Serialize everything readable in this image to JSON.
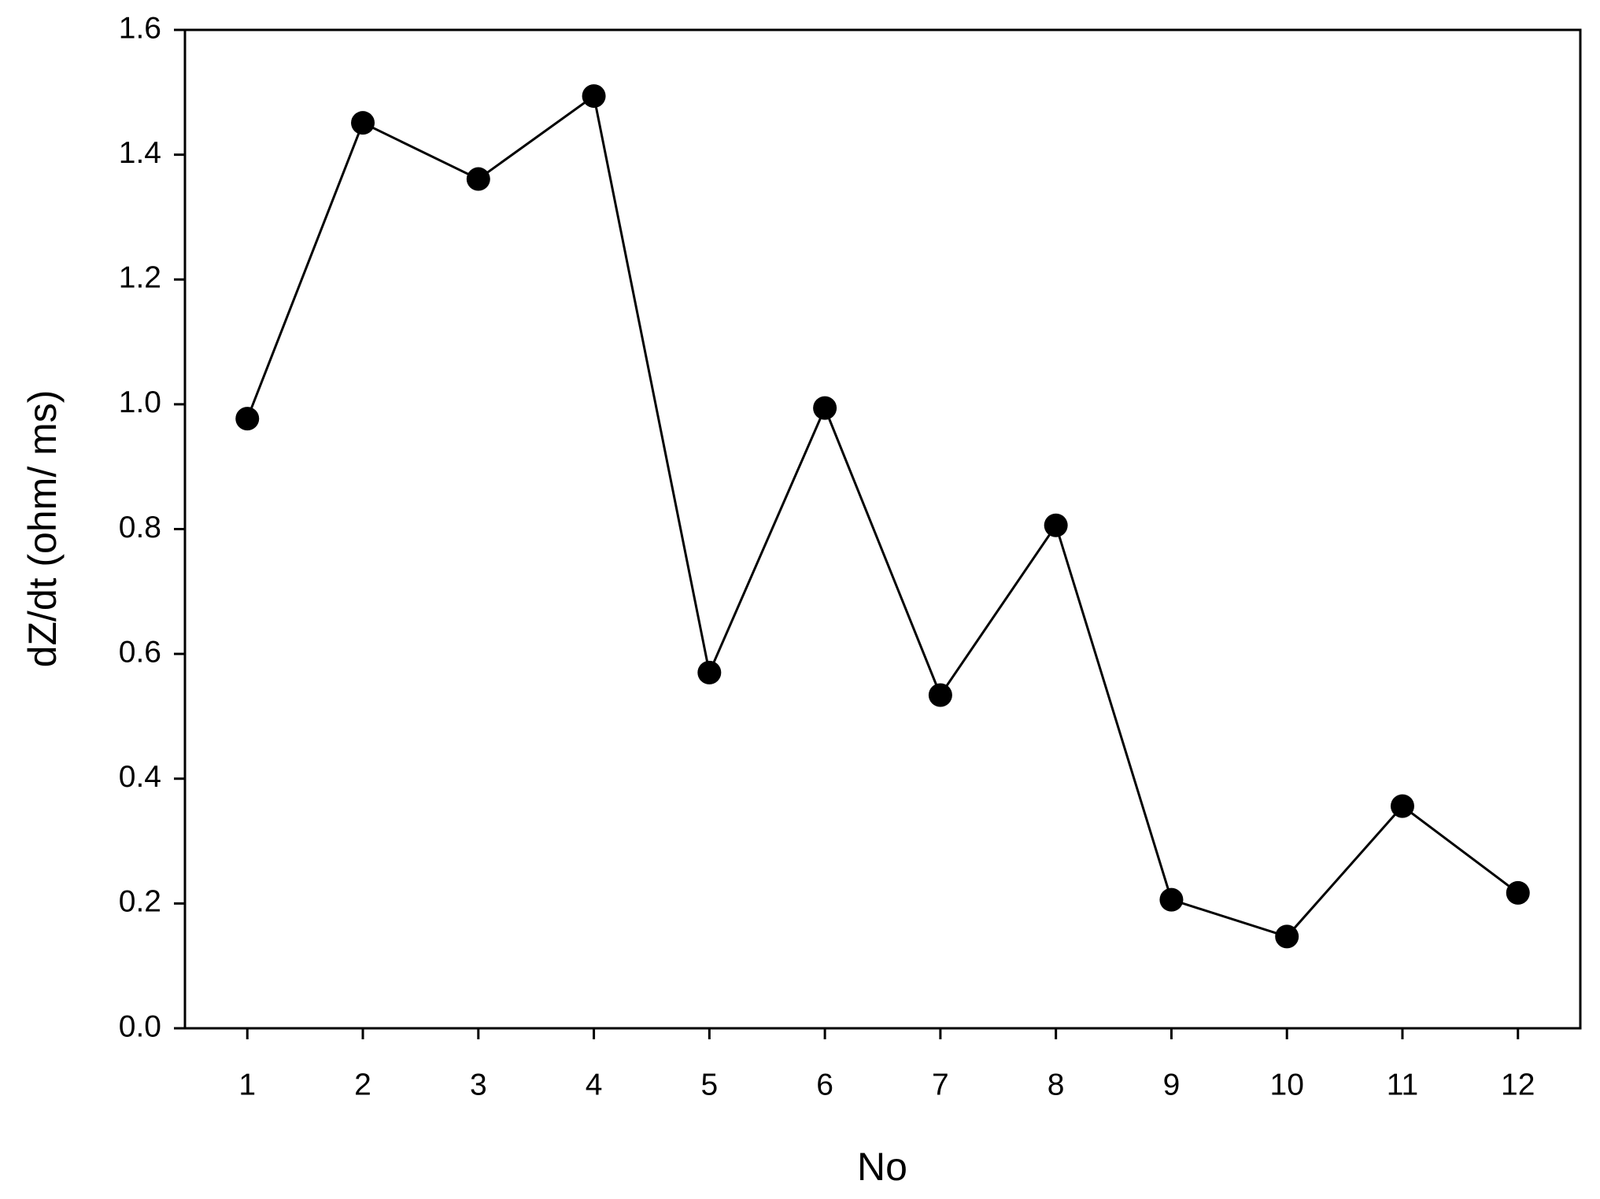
{
  "chart_data": {
    "type": "line",
    "x": [
      1,
      2,
      3,
      4,
      5,
      6,
      7,
      8,
      9,
      10,
      11,
      12
    ],
    "series": [
      {
        "color": "#000000",
        "values": [
          0.977,
          1.451,
          1.361,
          1.494,
          0.57,
          0.994,
          0.534,
          0.806,
          0.206,
          0.147,
          0.356,
          0.217
        ]
      }
    ],
    "xlabel": "No",
    "ylabel": "dZ/dt (ohm/ ms)",
    "xlim": [
      0.46,
      12.54
    ],
    "xticks": [
      1,
      2,
      3,
      4,
      5,
      6,
      7,
      8,
      9,
      10,
      11,
      12
    ],
    "ylim": [
      0,
      1.6
    ],
    "yticks": [
      {
        "value": 0,
        "label": "0.0"
      },
      0.2,
      0.4,
      0.6,
      0.8,
      {
        "value": 1,
        "label": "1.0"
      },
      1.2,
      1.4,
      1.6
    ],
    "grid": false
  }
}
